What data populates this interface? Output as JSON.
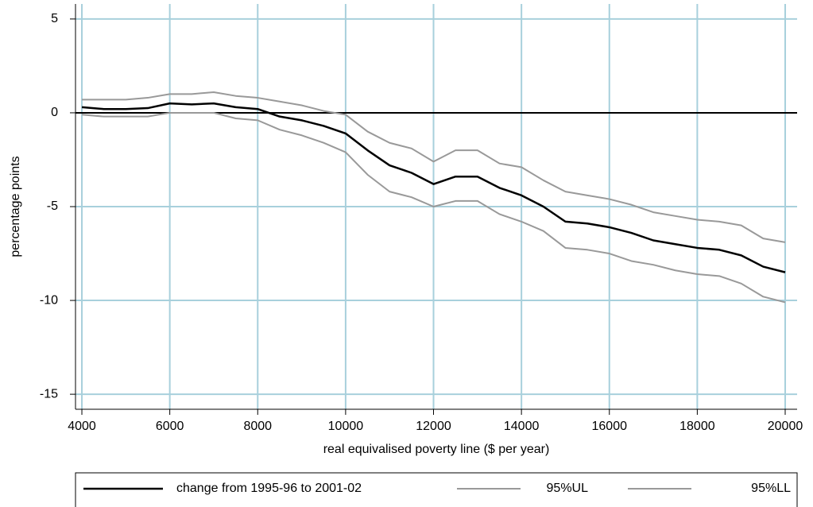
{
  "chart_data": {
    "type": "line",
    "x": [
      4000,
      4500,
      5000,
      5500,
      6000,
      6500,
      7000,
      7500,
      8000,
      8500,
      9000,
      9500,
      10000,
      10500,
      11000,
      11500,
      12000,
      12500,
      13000,
      13500,
      14000,
      14500,
      15000,
      15500,
      16000,
      16500,
      17000,
      17500,
      18000,
      18500,
      19000,
      19500,
      20000
    ],
    "series": [
      {
        "name": "change from 1995-96 to 2001-02",
        "color": "#000000",
        "width": 2.5,
        "values": [
          0.3,
          0.2,
          0.2,
          0.25,
          0.5,
          0.45,
          0.5,
          0.3,
          0.2,
          -0.2,
          -0.4,
          -0.7,
          -1.1,
          -2,
          -2.8,
          -3.2,
          -3.8,
          -3.4,
          -3.4,
          -4,
          -4.4,
          -5,
          -5.8,
          -5.9,
          -6.1,
          -6.4,
          -6.8,
          -7,
          -7.2,
          -7.3,
          -7.6,
          -8.2,
          -8.5
        ]
      },
      {
        "name": "95%UL",
        "color": "#999999",
        "width": 2,
        "values": [
          0.7,
          0.7,
          0.7,
          0.8,
          1.0,
          1.0,
          1.1,
          0.9,
          0.8,
          0.6,
          0.4,
          0.1,
          -0.1,
          -1.0,
          -1.6,
          -1.9,
          -2.6,
          -2.0,
          -2.0,
          -2.7,
          -2.9,
          -3.6,
          -4.2,
          -4.4,
          -4.6,
          -4.9,
          -5.3,
          -5.5,
          -5.7,
          -5.8,
          -6.0,
          -6.7,
          -6.9
        ]
      },
      {
        "name": "95%LL",
        "color": "#999999",
        "width": 2,
        "values": [
          -0.1,
          -0.2,
          -0.2,
          -0.2,
          0.0,
          0.0,
          0.0,
          -0.3,
          -0.4,
          -0.9,
          -1.2,
          -1.6,
          -2.1,
          -3.3,
          -4.2,
          -4.5,
          -5.0,
          -4.7,
          -4.7,
          -5.4,
          -5.8,
          -6.3,
          -7.2,
          -7.3,
          -7.5,
          -7.9,
          -8.1,
          -8.4,
          -8.6,
          -8.7,
          -9.1,
          -9.8,
          -10.1
        ]
      }
    ],
    "xlabel": "real equivalised poverty line ($ per year)",
    "ylabel": "percentage points",
    "xlim": [
      3855,
      20271
    ],
    "ylim": [
      -15.8,
      5.8
    ],
    "xticks": [
      4000,
      6000,
      8000,
      10000,
      12000,
      14000,
      16000,
      18000,
      20000
    ],
    "yticks": [
      -15,
      -10,
      -5,
      0,
      5
    ],
    "hline": 0,
    "grid": true,
    "grid_color": "#a8d0dc",
    "legend": "bottom"
  }
}
